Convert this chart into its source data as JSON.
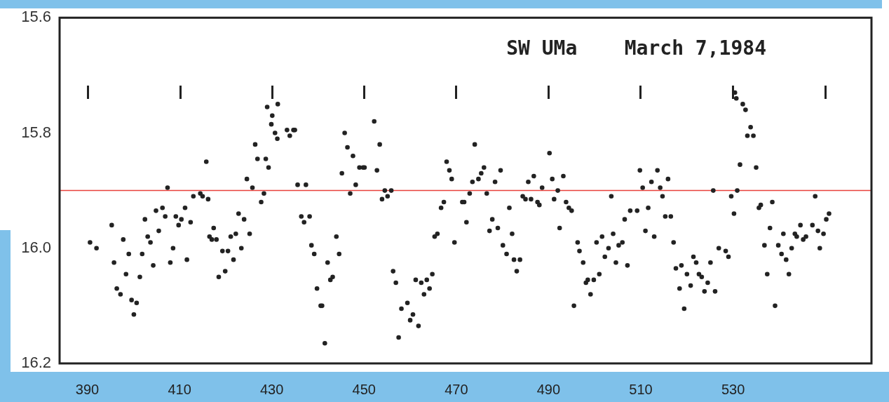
{
  "chart_data": {
    "type": "scatter",
    "title": "SW UMa    March 7,1984",
    "xlim": [
      384,
      560
    ],
    "xticks": [
      390,
      410,
      430,
      450,
      470,
      490,
      510,
      530
    ],
    "ylim": [
      16.2,
      15.6
    ],
    "yticks": [
      15.6,
      15.8,
      {
        "value": 16,
        "label": "16.0"
      },
      16.2
    ],
    "grid": false,
    "legend": false,
    "marker": "circle",
    "ref_lines": [
      {
        "axis": "y",
        "value": 15.9,
        "color": "#e8413c"
      }
    ],
    "series": [
      {
        "color": "#222222",
        "x": [
          390.6,
          392.0,
          395.3,
          395.8,
          396.4,
          397.2,
          397.8,
          398.4,
          399.0,
          399.6,
          400.1,
          400.7,
          401.4,
          401.9,
          402.5,
          403.1,
          403.7,
          404.3,
          404.9,
          405.5,
          406.3,
          406.9,
          407.4,
          408.0,
          408.6,
          409.2,
          409.8,
          410.4,
          411.2,
          411.6,
          412.4,
          413.0,
          414.5,
          415.0,
          415.8,
          416.2,
          416.5,
          417.0,
          417.4,
          418.0,
          418.5,
          419.3,
          419.9,
          420.5,
          421.1,
          421.7,
          422.2,
          422.8,
          423.4,
          424.0,
          424.6,
          425.2,
          425.8,
          426.4,
          426.9,
          427.7,
          428.3,
          428.7,
          429.0,
          429.3,
          429.9,
          430.1,
          430.7,
          431.2,
          431.3,
          433.3,
          433.9,
          434.7,
          435.0,
          435.6,
          436.4,
          437.0,
          437.4,
          438.2,
          438.6,
          439.2,
          439.8,
          440.6,
          440.9,
          441.5,
          442.1,
          442.7,
          443.2,
          444.0,
          444.6,
          445.2,
          445.8,
          446.4,
          447.0,
          447.6,
          448.2,
          449.0,
          449.8,
          450.1,
          452.2,
          452.8,
          453.4,
          453.9,
          454.5,
          455.1,
          455.9,
          456.3,
          456.9,
          457.5,
          458.1,
          459.4,
          460.0,
          460.6,
          461.2,
          461.8,
          462.4,
          463.0,
          463.6,
          464.2,
          464.8,
          465.3,
          465.9,
          466.7,
          467.3,
          467.9,
          468.5,
          469.0,
          469.6,
          471.3,
          471.7,
          472.2,
          472.9,
          473.5,
          474.0,
          474.8,
          475.4,
          476.0,
          476.6,
          477.2,
          477.8,
          478.4,
          479.0,
          479.6,
          480.1,
          480.9,
          481.5,
          482.1,
          482.5,
          483.1,
          483.8,
          484.4,
          485.0,
          485.6,
          486.2,
          486.8,
          487.6,
          488.0,
          488.6,
          490.2,
          490.8,
          491.2,
          492.0,
          492.4,
          493.2,
          493.8,
          494.4,
          495.0,
          495.5,
          496.3,
          496.7,
          497.5,
          498.1,
          498.5,
          499.1,
          499.8,
          500.4,
          501.0,
          501.6,
          502.2,
          503.0,
          503.6,
          504.0,
          504.6,
          505.2,
          506.0,
          506.5,
          507.1,
          507.7,
          509.2,
          509.8,
          510.4,
          511.0,
          511.6,
          512.3,
          512.9,
          513.6,
          514.2,
          514.7,
          515.3,
          515.9,
          516.5,
          517.1,
          517.6,
          518.4,
          518.8,
          519.4,
          520.0,
          520.8,
          521.4,
          522.0,
          522.6,
          523.2,
          523.8,
          524.5,
          525.1,
          525.7,
          526.1,
          526.9,
          528.4,
          529.0,
          529.6,
          530.2,
          530.4,
          530.7,
          530.9,
          531.5,
          532.1,
          532.7,
          533.1,
          533.8,
          534.4,
          535.0,
          535.6,
          536.0,
          536.8,
          537.4,
          538.0,
          538.5,
          539.1,
          539.8,
          540.5,
          540.9,
          541.5,
          542.1,
          542.7,
          543.4,
          543.8,
          544.6,
          545.2,
          545.8,
          547.2,
          547.8,
          548.4,
          548.8,
          549.6,
          550.2,
          550.8
        ],
        "values": [
          15.99,
          16.0,
          15.96,
          16.025,
          16.07,
          16.08,
          15.985,
          16.045,
          16.01,
          16.09,
          16.115,
          16.095,
          16.05,
          16.01,
          15.95,
          15.98,
          15.99,
          16.03,
          15.935,
          15.97,
          15.93,
          15.945,
          15.895,
          16.025,
          16.0,
          15.945,
          15.96,
          15.95,
          15.93,
          16.02,
          15.955,
          15.91,
          15.905,
          15.91,
          15.85,
          15.915,
          15.98,
          15.985,
          15.965,
          15.985,
          16.05,
          16.005,
          16.04,
          16.005,
          15.98,
          16.02,
          15.975,
          15.94,
          16.0,
          15.95,
          15.88,
          15.975,
          15.895,
          15.82,
          15.845,
          15.92,
          15.905,
          15.845,
          15.755,
          15.86,
          15.785,
          15.77,
          15.8,
          15.81,
          15.75,
          15.795,
          15.805,
          15.795,
          15.795,
          15.89,
          15.945,
          15.955,
          15.89,
          15.945,
          15.995,
          16.01,
          16.07,
          16.1,
          16.1,
          16.165,
          16.025,
          16.055,
          16.05,
          15.98,
          16.01,
          15.87,
          15.8,
          15.825,
          15.905,
          15.84,
          15.89,
          15.86,
          15.86,
          15.86,
          15.78,
          15.865,
          15.82,
          15.915,
          15.9,
          15.91,
          15.9,
          16.04,
          16.06,
          16.155,
          16.105,
          16.095,
          16.125,
          16.115,
          16.055,
          16.135,
          16.06,
          16.08,
          16.055,
          16.07,
          16.045,
          15.98,
          15.975,
          15.93,
          15.92,
          15.85,
          15.865,
          15.88,
          15.99,
          15.92,
          15.92,
          15.955,
          15.905,
          15.885,
          15.82,
          15.88,
          15.87,
          15.86,
          15.905,
          15.97,
          15.95,
          15.885,
          15.965,
          15.865,
          15.995,
          16.01,
          15.93,
          15.975,
          16.02,
          16.04,
          16.02,
          15.91,
          15.915,
          15.885,
          15.915,
          15.875,
          15.92,
          15.925,
          15.895,
          15.835,
          15.88,
          15.915,
          15.9,
          15.965,
          15.875,
          15.92,
          15.93,
          15.935,
          16.1,
          15.99,
          16.005,
          16.025,
          16.06,
          16.055,
          16.08,
          16.055,
          15.99,
          16.045,
          15.98,
          16.015,
          16.0,
          15.91,
          15.975,
          16.025,
          15.995,
          15.99,
          15.95,
          16.03,
          15.935,
          15.935,
          15.865,
          15.895,
          15.97,
          15.93,
          15.885,
          15.98,
          15.865,
          15.895,
          15.91,
          15.945,
          15.88,
          15.945,
          15.99,
          16.035,
          16.07,
          16.03,
          16.105,
          16.045,
          16.065,
          16.015,
          16.025,
          16.045,
          16.05,
          16.075,
          16.06,
          16.025,
          15.9,
          16.075,
          16.0,
          16.005,
          16.015,
          15.91,
          15.94,
          15.73,
          15.74,
          15.9,
          15.855,
          15.75,
          15.76,
          15.805,
          15.79,
          15.805,
          15.86,
          15.93,
          15.925,
          15.995,
          16.045,
          15.965,
          15.92,
          16.1,
          15.995,
          16.01,
          15.975,
          16.02,
          16.045,
          16.0,
          15.975,
          15.98,
          15.96,
          15.985,
          15.98,
          15.96,
          15.91,
          15.97,
          16.0,
          15.975,
          15.95,
          15.94
        ]
      }
    ]
  }
}
